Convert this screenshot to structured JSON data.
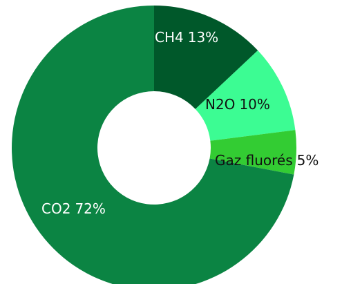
{
  "chart_data": {
    "type": "donut",
    "categories": [
      "CH4",
      "N2O",
      "Gaz fluorés",
      "CO2"
    ],
    "values": [
      13,
      10,
      5,
      72
    ],
    "value_labels": [
      "13%",
      "10%",
      "5%",
      "72%"
    ],
    "colors": [
      "#00582a",
      "#3cfc93",
      "#33cc33",
      "#0b8443"
    ]
  }
}
